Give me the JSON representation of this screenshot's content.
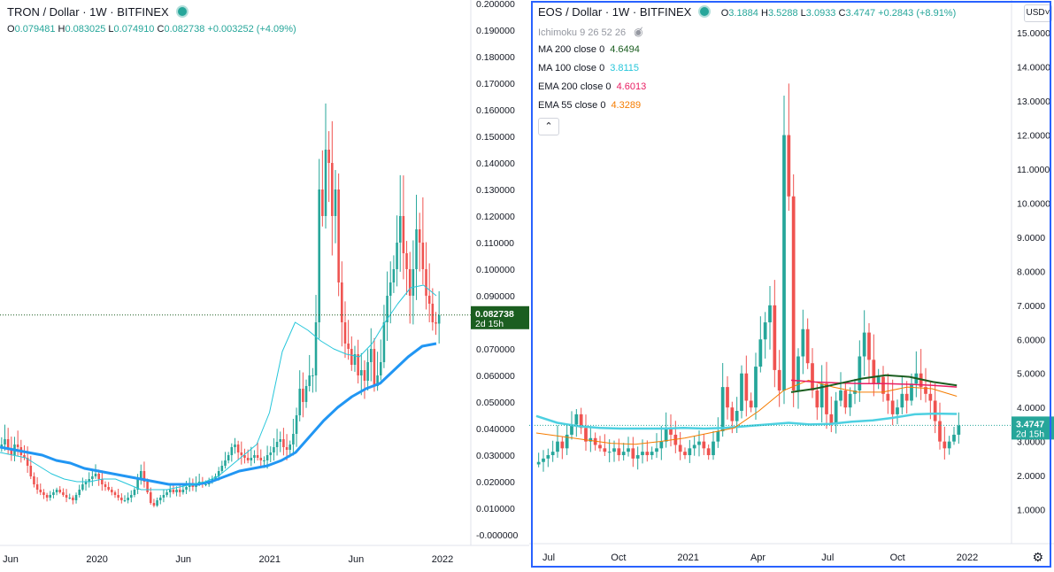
{
  "chart_data": [
    {
      "type": "candlestick",
      "symbol": "TRON / Dollar · 1W · BITFINEX",
      "ohlc": {
        "open_label": "O",
        "open": "0.079481",
        "high_label": "H",
        "high": "0.083025",
        "low_label": "L",
        "low": "0.074910",
        "close_label": "C",
        "close": "0.082738",
        "change": "+0.003252",
        "change_pct": "(+4.09%)"
      },
      "current_price": "0.082738",
      "countdown": "2d 15h",
      "y_ticks": [
        "0.200000",
        "0.190000",
        "0.180000",
        "0.170000",
        "0.160000",
        "0.150000",
        "0.140000",
        "0.130000",
        "0.120000",
        "0.110000",
        "0.100000",
        "0.090000",
        "0.080000",
        "0.070000",
        "0.060000",
        "0.050000",
        "0.040000",
        "0.030000",
        "0.020000",
        "0.010000",
        "-0.000000"
      ],
      "x_ticks": [
        "Jun",
        "2020",
        "Jun",
        "2021",
        "Jun",
        "2022"
      ],
      "ylim": [
        -0.004,
        0.2
      ],
      "colors": {
        "up": "#26a69a",
        "down": "#ef5350",
        "ma_thick": "#2196f3",
        "ma_thin": "#26c6da"
      },
      "series_close": [
        0.034,
        0.036,
        0.032,
        0.03,
        0.034,
        0.033,
        0.03,
        0.029,
        0.026,
        0.022,
        0.019,
        0.017,
        0.016,
        0.015,
        0.014,
        0.015,
        0.016,
        0.017,
        0.016,
        0.015,
        0.014,
        0.014,
        0.013,
        0.015,
        0.017,
        0.019,
        0.02,
        0.021,
        0.022,
        0.023,
        0.021,
        0.019,
        0.018,
        0.017,
        0.016,
        0.015,
        0.014,
        0.013,
        0.013,
        0.014,
        0.015,
        0.017,
        0.021,
        0.024,
        0.02,
        0.016,
        0.012,
        0.011,
        0.013,
        0.014,
        0.015,
        0.016,
        0.017,
        0.016,
        0.017,
        0.016,
        0.017,
        0.018,
        0.019,
        0.018,
        0.019,
        0.02,
        0.019,
        0.019,
        0.02,
        0.021,
        0.022,
        0.024,
        0.026,
        0.028,
        0.03,
        0.033,
        0.034,
        0.031,
        0.03,
        0.029,
        0.028,
        0.029,
        0.03,
        0.029,
        0.028,
        0.028,
        0.03,
        0.031,
        0.033,
        0.035,
        0.036,
        0.033,
        0.032,
        0.034,
        0.038,
        0.045,
        0.055,
        0.05,
        0.056,
        0.06,
        0.06,
        0.08,
        0.13,
        0.12,
        0.145,
        0.14,
        0.12,
        0.13,
        0.095,
        0.08,
        0.072,
        0.07,
        0.064,
        0.068,
        0.06,
        0.062,
        0.058,
        0.065,
        0.07,
        0.056,
        0.06,
        0.065,
        0.08,
        0.09,
        0.095,
        0.1,
        0.11,
        0.12,
        0.106,
        0.1,
        0.09,
        0.1,
        0.115,
        0.11,
        0.1,
        0.09,
        0.087,
        0.08,
        0.0795,
        0.0827
      ],
      "ma_thick": [
        0.033,
        0.032,
        0.031,
        0.03,
        0.028,
        0.027,
        0.025,
        0.024,
        0.023,
        0.022,
        0.021,
        0.02,
        0.019,
        0.019,
        0.019,
        0.02,
        0.022,
        0.024,
        0.025,
        0.026,
        0.028,
        0.031,
        0.037,
        0.043,
        0.048,
        0.052,
        0.055,
        0.057,
        0.062,
        0.067,
        0.071,
        0.072
      ],
      "ma_thin": [
        0.031,
        0.03,
        0.029,
        0.026,
        0.023,
        0.021,
        0.02,
        0.02,
        0.021,
        0.021,
        0.019,
        0.017,
        0.017,
        0.017,
        0.018,
        0.019,
        0.02,
        0.022,
        0.026,
        0.03,
        0.034,
        0.046,
        0.069,
        0.08,
        0.077,
        0.073,
        0.07,
        0.068,
        0.067,
        0.072,
        0.08,
        0.087,
        0.093,
        0.094,
        0.09
      ]
    },
    {
      "type": "candlestick",
      "symbol": "EOS / Dollar · 1W · BITFINEX",
      "ohlc": {
        "open_label": "O",
        "open": "3.1884",
        "high_label": "H",
        "high": "3.5288",
        "low_label": "L",
        "low": "3.0933",
        "close_label": "C",
        "close": "3.4747",
        "change": "+0.2843",
        "change_pct": "(+8.91%)"
      },
      "indicators": [
        {
          "name": "Ichimoku 9 26 52 26",
          "value": "",
          "color": "#9598a1"
        },
        {
          "name": "MA 200 close 0",
          "value": "4.6494",
          "color": "#1b5e20"
        },
        {
          "name": "MA 100 close 0",
          "value": "3.8115",
          "color": "#26c6da"
        },
        {
          "name": "EMA 200 close 0",
          "value": "4.6013",
          "color": "#e91e63"
        },
        {
          "name": "EMA 55 close 0",
          "value": "4.3289",
          "color": "#f57c00"
        }
      ],
      "current_price": "3.4747",
      "countdown": "2d 15h",
      "currency": "USD",
      "y_ticks": [
        "15.0000",
        "14.0000",
        "13.0000",
        "12.0000",
        "11.0000",
        "10.0000",
        "9.0000",
        "8.0000",
        "7.0000",
        "6.0000",
        "5.0000",
        "4.0000",
        "3.0000",
        "2.0000",
        "1.0000"
      ],
      "x_ticks": [
        "Jul",
        "Oct",
        "2021",
        "Apr",
        "Jul",
        "Oct",
        "2022"
      ],
      "ylim": [
        0.0,
        15.5
      ],
      "colors": {
        "up": "#26a69a",
        "down": "#ef5350",
        "ma200": "#1b5e20",
        "ma100": "#4dd0e1",
        "ema200": "#e91e63",
        "ema55": "#f57c00"
      },
      "series_close": [
        2.4,
        2.5,
        2.6,
        2.7,
        3.0,
        2.8,
        3.2,
        3.5,
        3.8,
        3.4,
        3.0,
        3.1,
        2.9,
        2.8,
        2.7,
        2.7,
        2.8,
        2.6,
        2.7,
        2.8,
        2.5,
        2.6,
        2.7,
        2.6,
        2.7,
        2.8,
        3.0,
        3.4,
        3.2,
        2.9,
        2.7,
        2.6,
        2.8,
        2.9,
        3.0,
        2.8,
        2.6,
        3.0,
        3.3,
        4.6,
        4.0,
        3.6,
        3.9,
        5.0,
        4.2,
        4.0,
        5.2,
        6.0,
        6.5,
        7.0,
        5.1,
        4.5,
        12.0,
        10.2,
        4.5,
        5.5,
        6.3,
        5.3,
        4.5,
        4.0,
        4.7,
        3.8,
        3.5,
        4.2,
        4.5,
        4.0,
        4.4,
        4.5,
        5.5,
        6.2,
        5.4,
        4.7,
        4.9,
        4.4,
        4.2,
        3.8,
        4.0,
        4.4,
        4.2,
        4.7,
        5.0,
        4.6,
        4.4,
        4.2,
        3.6,
        3.0,
        2.8,
        3.0,
        3.2,
        3.47
      ],
      "ma200": [
        4.45,
        4.55,
        4.7,
        4.85,
        4.95,
        4.9,
        4.75,
        4.65
      ],
      "ma100": [
        3.75,
        3.55,
        3.45,
        3.4,
        3.38,
        3.38,
        3.38,
        3.4,
        3.38,
        3.4,
        3.45,
        3.5,
        3.55,
        3.5,
        3.52,
        3.58,
        3.62,
        3.7,
        3.8,
        3.82,
        3.81
      ],
      "ema200": [
        4.8,
        4.75,
        4.72,
        4.7,
        4.7,
        4.68,
        4.65,
        4.6
      ],
      "ema55": [
        3.25,
        3.15,
        3.05,
        2.95,
        2.92,
        3.0,
        3.1,
        3.25,
        3.4,
        3.9,
        4.5,
        4.8,
        4.6,
        4.45,
        4.45,
        4.6,
        4.55,
        4.33
      ]
    }
  ]
}
